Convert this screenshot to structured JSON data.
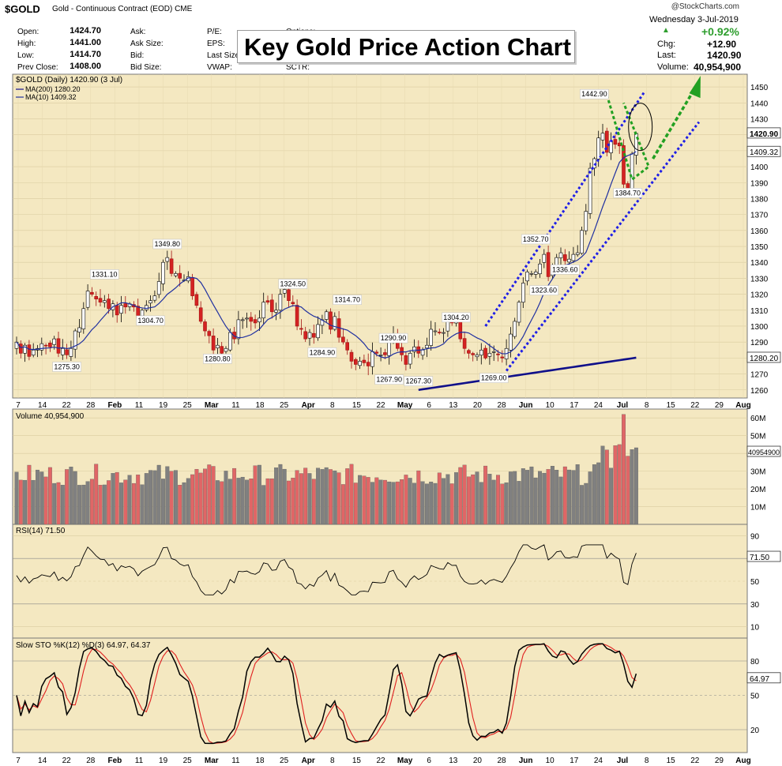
{
  "header": {
    "symbol": "$GOLD",
    "description": "Gold - Continuous Contract (EOD)",
    "exchange": "CME",
    "date": "Wednesday  3-Jul-2019",
    "change_pct": "+0.92%",
    "chg_label": "Chg:",
    "chg_value": "+12.90",
    "last_label": "Last:",
    "last_value": "1420.90",
    "volume_label": "Volume:",
    "volume_value": "40,954,900",
    "logo": "@StockCharts.com",
    "quotes": [
      {
        "label": "Open:",
        "value": "1424.70"
      },
      {
        "label": "High:",
        "value": "1441.00"
      },
      {
        "label": "Low:",
        "value": "1414.70"
      },
      {
        "label": "Prev Close:",
        "value": "1408.00"
      }
    ],
    "mid_labels": [
      "Ask:",
      "Ask Size:",
      "Bid:",
      "Bid Size:"
    ],
    "right_labels": [
      "P/E:",
      "EPS:",
      "Last Size:",
      "VWAP:",
      "Options:",
      "SCTR:"
    ]
  },
  "title": "Key Gold Price Action Chart",
  "colors": {
    "up": "#808080",
    "down": "#e06666",
    "price_panel_bg": "#f4e8c1",
    "ma_short": "#2030a0",
    "ma_long": "#10108a",
    "channel": "#1e1ee6",
    "arrow": "#22a022",
    "overbought_fill": "#5d8a4f"
  },
  "chart_data": [
    {
      "type": "candlestick",
      "legend": [
        "$GOLD (Daily) 1420.90 (3 Jul)",
        "MA(200) 1280.20",
        "MA(10) 1409.32"
      ],
      "ylim": [
        1255,
        1455
      ],
      "y_ticks": [
        1260,
        1270,
        1280,
        1290,
        1300,
        1310,
        1320,
        1330,
        1340,
        1350,
        1360,
        1370,
        1380,
        1390,
        1400,
        1410,
        1420,
        1430,
        1440,
        1450
      ],
      "x_ticks": [
        "7",
        "14",
        "22",
        "28",
        "Feb",
        "11",
        "19",
        "25",
        "Mar",
        "11",
        "18",
        "25",
        "Apr",
        "8",
        "15",
        "22",
        "May",
        "6",
        "13",
        "20",
        "28",
        "Jun",
        "10",
        "17",
        "24",
        "Jul",
        "8",
        "15",
        "22",
        "29",
        "Aug"
      ],
      "price_tags": [
        "1420.90",
        "1409.32",
        "1280.20"
      ],
      "annotations": [
        {
          "text": "1275.30",
          "x": "2019-01-22"
        },
        {
          "text": "1331.10",
          "x": "2019-01-28"
        },
        {
          "text": "1349.80",
          "x": "2019-02-20"
        },
        {
          "text": "1304.70",
          "x": "2019-02-13"
        },
        {
          "text": "1280.80",
          "x": "2019-03-06"
        },
        {
          "text": "1324.50",
          "x": "2019-03-25"
        },
        {
          "text": "1314.70",
          "x": "2019-04-11"
        },
        {
          "text": "1284.90",
          "x": "2019-04-09"
        },
        {
          "text": "1267.90",
          "x": "2019-04-23"
        },
        {
          "text": "1290.90",
          "x": "2019-04-30"
        },
        {
          "text": "1267.30",
          "x": "2019-05-02"
        },
        {
          "text": "1304.20",
          "x": "2019-05-14"
        },
        {
          "text": "1269.00",
          "x": "2019-05-21"
        },
        {
          "text": "1352.70",
          "x": "2019-06-05"
        },
        {
          "text": "1323.60",
          "x": "2019-06-07"
        },
        {
          "text": "1336.60",
          "x": "2019-06-13"
        },
        {
          "text": "1442.90",
          "x": "2019-06-25"
        },
        {
          "text": "1384.70",
          "x": "2019-07-01"
        }
      ],
      "series": [
        {
          "name": "$GOLD",
          "closes": [
            1290,
            1283,
            1288,
            1281,
            1285,
            1286,
            1289,
            1288,
            1287,
            1292,
            1283,
            1286,
            1282,
            1286,
            1297,
            1299,
            1311,
            1322,
            1320,
            1317,
            1315,
            1316,
            1311,
            1314,
            1307,
            1313,
            1312,
            1314,
            1312,
            1305,
            1310,
            1313,
            1316,
            1319,
            1328,
            1340,
            1343,
            1333,
            1333,
            1330,
            1329,
            1331,
            1319,
            1313,
            1303,
            1297,
            1294,
            1285,
            1288,
            1283,
            1286,
            1296,
            1292,
            1304,
            1304,
            1305,
            1303,
            1302,
            1305,
            1315,
            1315,
            1309,
            1310,
            1320,
            1323,
            1316,
            1314,
            1300,
            1298,
            1292,
            1296,
            1293,
            1301,
            1304,
            1309,
            1298,
            1306,
            1293,
            1290,
            1285,
            1278,
            1276,
            1278,
            1277,
            1275,
            1284,
            1283,
            1282,
            1282,
            1293,
            1295,
            1286,
            1282,
            1276,
            1283,
            1287,
            1283,
            1285,
            1288,
            1298,
            1297,
            1296,
            1296,
            1304,
            1302,
            1303,
            1292,
            1286,
            1283,
            1282,
            1282,
            1285,
            1280,
            1283,
            1284,
            1282,
            1280,
            1286,
            1295,
            1303,
            1315,
            1327,
            1334,
            1333,
            1334,
            1339,
            1345,
            1331,
            1336,
            1343,
            1346,
            1341,
            1342,
            1345,
            1346,
            1360,
            1372,
            1399,
            1405,
            1418,
            1421,
            1409,
            1416,
            1414,
            1413,
            1389,
            1386,
            1408,
            1420.9
          ]
        },
        {
          "name": "MA(10)",
          "last": 1409.32
        },
        {
          "name": "MA(200)",
          "last": 1280.2
        }
      ]
    },
    {
      "type": "bar",
      "legend": [
        "Volume 40,954,900"
      ],
      "y_ticks": [
        "10M",
        "20M",
        "30M",
        "40M",
        "50M",
        "60M"
      ],
      "ylim": [
        0,
        65
      ],
      "price_tag": "40954900"
    },
    {
      "type": "line",
      "legend": [
        "RSI(14) 71.50"
      ],
      "ylim": [
        0,
        100
      ],
      "y_ticks": [
        10,
        30,
        50,
        70,
        90
      ],
      "price_tag": "71.50"
    },
    {
      "type": "line",
      "legend": [
        "Slow STO %K(12) %D(3) 64.97, 64.37"
      ],
      "ylim": [
        0,
        100
      ],
      "y_ticks": [
        20,
        50,
        80
      ],
      "price_tag": "64.97"
    }
  ]
}
